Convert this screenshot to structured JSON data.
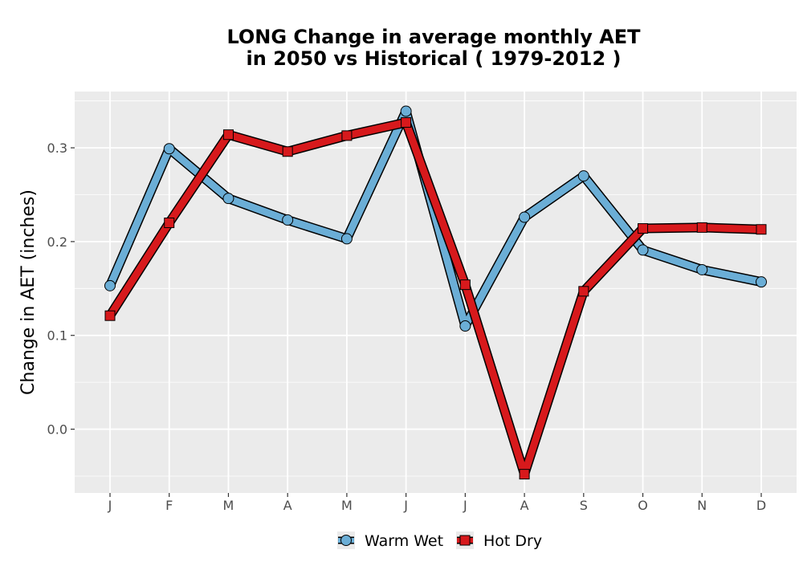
{
  "chart_data": {
    "type": "line",
    "title_lines": [
      "LONG  Change in average monthly AET",
      "in 2050 vs Historical ( 1979-2012 )"
    ],
    "xlabel": "",
    "ylabel": "Change in AET (inches)",
    "categories": [
      "J",
      "F",
      "M",
      "A",
      "M",
      "J",
      "J",
      "A",
      "S",
      "O",
      "N",
      "D"
    ],
    "yticks": [
      "0.0",
      "0.1",
      "0.2",
      "0.3"
    ],
    "ylim": [
      -0.068,
      0.36
    ],
    "grid": true,
    "legend_position": "bottom",
    "series": [
      {
        "name": "Warm Wet",
        "color": "#6baed6",
        "marker": "circle",
        "values": [
          0.153,
          0.299,
          0.246,
          0.223,
          0.203,
          0.339,
          0.11,
          0.226,
          0.27,
          0.191,
          0.17,
          0.157
        ]
      },
      {
        "name": "Hot Dry",
        "color": "#d7191c",
        "marker": "square",
        "values": [
          0.121,
          0.22,
          0.314,
          0.296,
          0.313,
          0.327,
          0.154,
          -0.048,
          0.147,
          0.214,
          0.215,
          0.213
        ]
      }
    ]
  }
}
